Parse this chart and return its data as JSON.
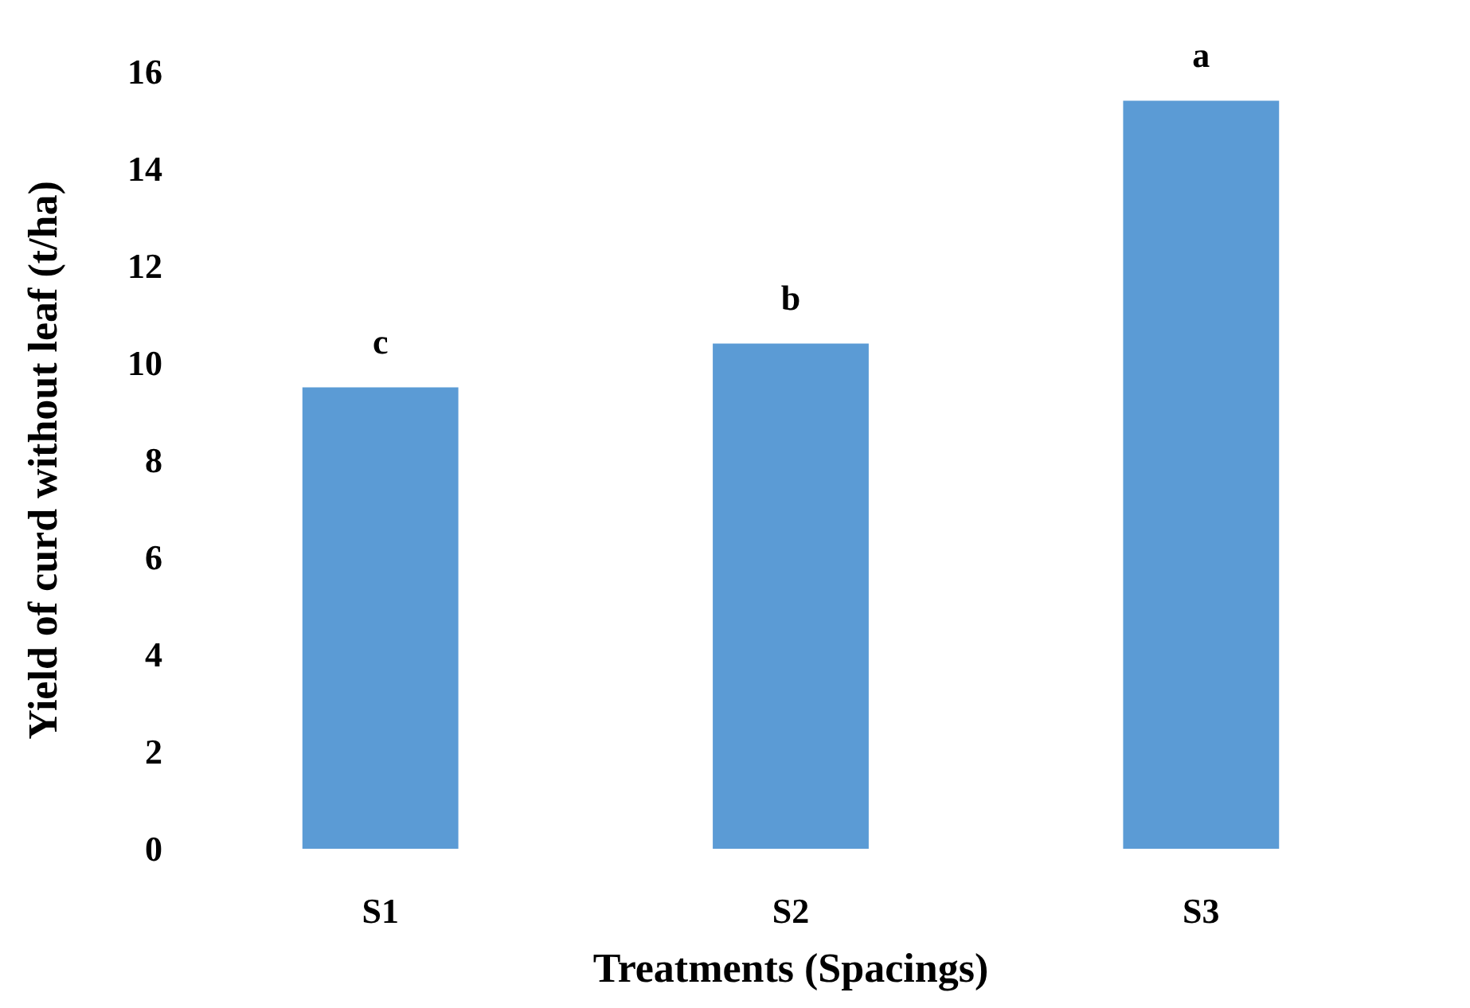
{
  "chart_data": {
    "type": "bar",
    "xlabel": "Treatments (Spacings)",
    "ylabel": "Yield of curd without leaf (t/ha)",
    "categories": [
      "S1",
      "S2",
      "S3"
    ],
    "values": [
      9.5,
      10.4,
      15.4
    ],
    "color": "#5b9bd5",
    "ylim": [
      0,
      16
    ],
    "yticks": [
      0,
      2,
      4,
      6,
      8,
      10,
      12,
      14,
      16
    ],
    "grid": false,
    "annotations": [
      {
        "text": "c",
        "x": "S1",
        "y": 9.5
      },
      {
        "text": "b",
        "x": "S2",
        "y": 10.4
      },
      {
        "text": "a",
        "x": "S3",
        "y": 15.4
      }
    ]
  }
}
